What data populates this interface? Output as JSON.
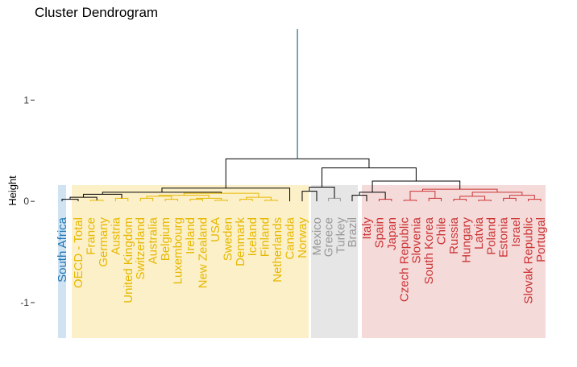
{
  "chart_data": {
    "type": "dendrogram",
    "title": "Cluster Dendrogram",
    "ylabel": "Height",
    "xlabel": "",
    "ylim": [
      -1.35,
      1.75
    ],
    "yticks": [
      -1,
      0,
      1
    ],
    "ytick_labels": [
      "-1",
      "0",
      "1"
    ],
    "grid": false,
    "leaves": [
      "South Africa",
      "OECD - Total",
      "France",
      "Germany",
      "Austria",
      "United Kingdom",
      "Switzerland",
      "Australia",
      "Belgium",
      "Luxembourg",
      "Ireland",
      "New Zealand",
      "USA",
      "Sweden",
      "Denmark",
      "Iceland",
      "Finland",
      "Netherlands",
      "Canada",
      "Norway",
      "Mexico",
      "Greece",
      "Turkey",
      "Brazil",
      "Italy",
      "Spain",
      "Japan",
      "Czech Republic",
      "Slovenia",
      "South Korea",
      "Chile",
      "Russia",
      "Hungary",
      "Latvia",
      "Poland",
      "Estonia",
      "Israel",
      "Slovak Republic",
      "Portugal"
    ],
    "clusters": [
      {
        "members": [
          "South Africa"
        ],
        "color": "#1f77b4",
        "band": "#cfe3f3"
      },
      {
        "members": [
          "OECD - Total",
          "France",
          "Germany",
          "Austria",
          "United Kingdom",
          "Switzerland",
          "Australia",
          "Belgium",
          "Luxembourg",
          "Ireland",
          "New Zealand",
          "USA",
          "Sweden",
          "Denmark",
          "Iceland",
          "Finland",
          "Netherlands",
          "Canada",
          "Norway"
        ],
        "color": "#e6b800",
        "band": "#fcf0c8"
      },
      {
        "members": [
          "Mexico",
          "Greece",
          "Turkey",
          "Brazil"
        ],
        "color": "#999999",
        "band": "#e6e6e6"
      },
      {
        "members": [
          "Italy",
          "Spain",
          "Japan",
          "Czech Republic",
          "Slovenia",
          "South Korea",
          "Chile",
          "Russia",
          "Hungary",
          "Latvia",
          "Poland",
          "Estonia",
          "Israel",
          "Slovak Republic",
          "Portugal"
        ],
        "color": "#cc3333",
        "band": "#f5dada"
      }
    ],
    "merges": [
      [
        0,
        1,
        0.02
      ],
      [
        2,
        3,
        0.01
      ],
      [
        0,
        2,
        0.04
      ],
      [
        4,
        5,
        0.03
      ],
      [
        0,
        4,
        0.07
      ],
      [
        6,
        7,
        0.03
      ],
      [
        8,
        9,
        0.02
      ],
      [
        6,
        8,
        0.05
      ],
      [
        10,
        11,
        0.02
      ],
      [
        12,
        13,
        0.01
      ],
      [
        10,
        12,
        0.03
      ],
      [
        6,
        10,
        0.06
      ],
      [
        14,
        15,
        0.02
      ],
      [
        16,
        17,
        0.01
      ],
      [
        14,
        16,
        0.04
      ],
      [
        6,
        14,
        0.08
      ],
      [
        0,
        6,
        0.09
      ],
      [
        0,
        18,
        0.13
      ],
      [
        19,
        20,
        0.1
      ],
      [
        21,
        22,
        0.03
      ],
      [
        19,
        21,
        0.14
      ],
      [
        23,
        24,
        0.06
      ],
      [
        25,
        26,
        0.02
      ],
      [
        23,
        25,
        0.09
      ],
      [
        27,
        28,
        0.01
      ],
      [
        29,
        30,
        0.03
      ],
      [
        27,
        29,
        0.1
      ],
      [
        31,
        32,
        0.02
      ],
      [
        33,
        34,
        0.01
      ],
      [
        31,
        33,
        0.05
      ],
      [
        35,
        36,
        0.03
      ],
      [
        37,
        38,
        0.02
      ],
      [
        35,
        37,
        0.06
      ],
      [
        31,
        35,
        0.09
      ],
      [
        27,
        31,
        0.12
      ],
      [
        23,
        27,
        0.2
      ],
      [
        19,
        23,
        0.33
      ],
      [
        0,
        19,
        0.42
      ],
      [
        -1,
        0,
        1.7
      ]
    ]
  }
}
